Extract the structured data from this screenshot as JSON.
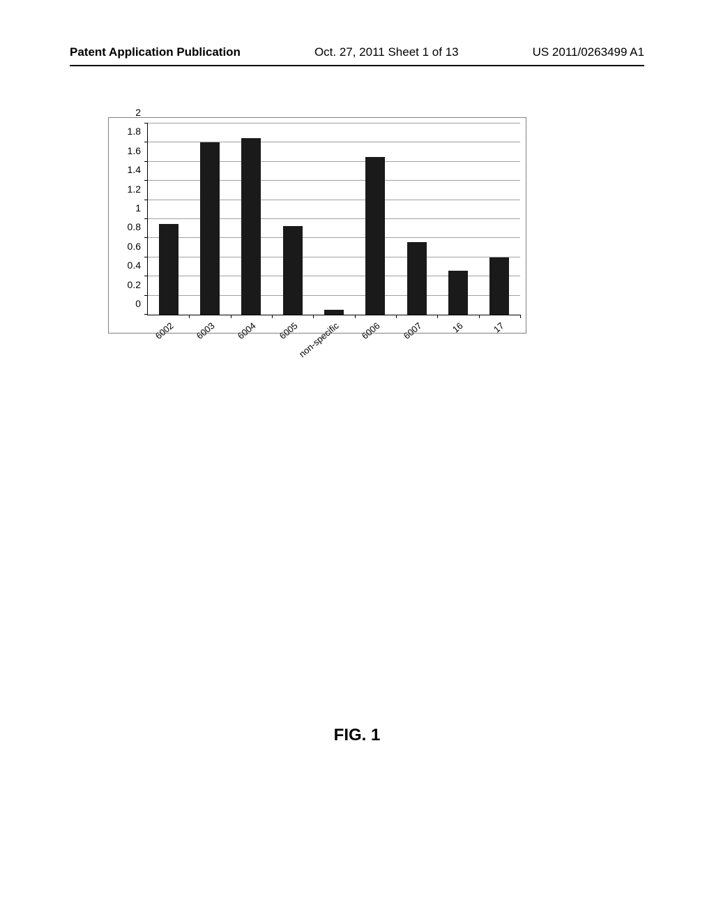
{
  "header": {
    "left": "Patent Application Publication",
    "center": "Oct. 27, 2011   Sheet 1 of 13",
    "right": "US 2011/0263499 A1"
  },
  "chart": {
    "type": "bar",
    "categories": [
      "6002",
      "6003",
      "6004",
      "6005",
      "non-specific",
      "6006",
      "6007",
      "16",
      "17"
    ],
    "values": [
      0.95,
      1.8,
      1.85,
      0.93,
      0.05,
      1.65,
      0.76,
      0.46,
      0.6
    ],
    "bar_color": "#1a1a1a",
    "background_color": "#ffffff",
    "grid_color": "#a0a0a0",
    "border_color": "#808080",
    "yticks": [
      0,
      0.2,
      0.4,
      0.6,
      0.8,
      1,
      1.2,
      1.4,
      1.6,
      1.8,
      2
    ],
    "ylim": [
      0,
      2
    ],
    "bar_width_pct": 5.2,
    "label_fontsize": 13,
    "tick_fontsize": 14
  },
  "figure_caption": "FIG. 1"
}
